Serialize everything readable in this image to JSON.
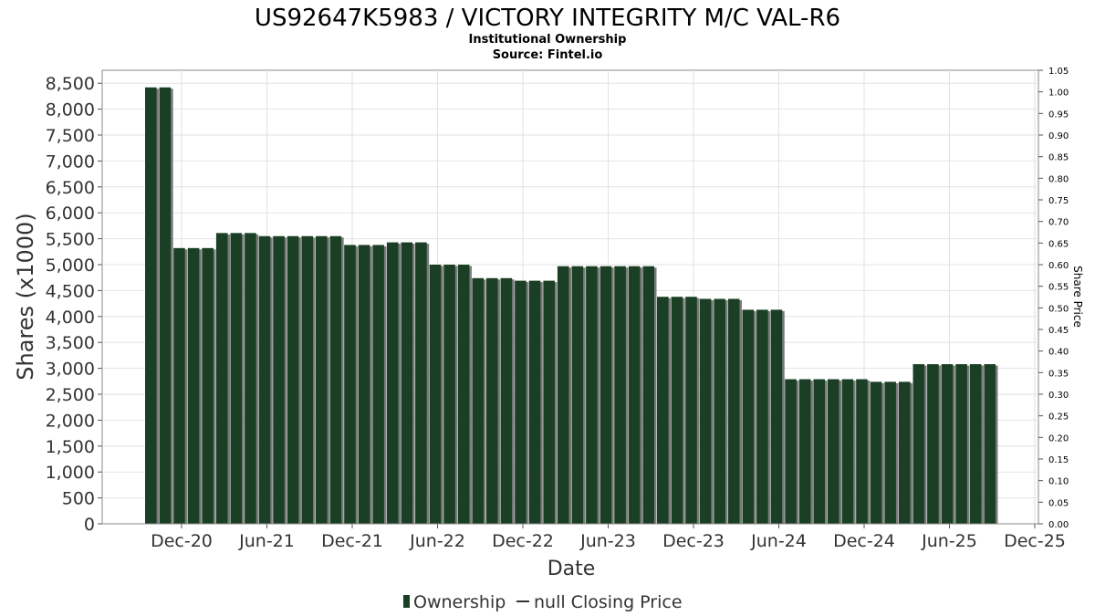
{
  "chart_data": {
    "type": "bar",
    "title": "US92647K5983 / VICTORY INTEGRITY M/C VAL-R6",
    "subtitle_line1": "Institutional Ownership",
    "subtitle_line2": "Source: Fintel.io",
    "xlabel": "Date",
    "ylabel": "Shares (x1000)",
    "y2label": "Share Price",
    "ylim": [
      0,
      8750
    ],
    "y2lim": [
      0,
      1.05
    ],
    "grid": true,
    "legend_position": "bottom-center",
    "yticks": [
      {
        "value": 0,
        "label": "0"
      },
      {
        "value": 500,
        "label": "500"
      },
      {
        "value": 1000,
        "label": "1,000"
      },
      {
        "value": 1500,
        "label": "1,500"
      },
      {
        "value": 2000,
        "label": "2,000"
      },
      {
        "value": 2500,
        "label": "2,500"
      },
      {
        "value": 3000,
        "label": "3,000"
      },
      {
        "value": 3500,
        "label": "3,500"
      },
      {
        "value": 4000,
        "label": "4,000"
      },
      {
        "value": 4500,
        "label": "4,500"
      },
      {
        "value": 5000,
        "label": "5,000"
      },
      {
        "value": 5500,
        "label": "5,500"
      },
      {
        "value": 6000,
        "label": "6,000"
      },
      {
        "value": 6500,
        "label": "6,500"
      },
      {
        "value": 7000,
        "label": "7,000"
      },
      {
        "value": 7500,
        "label": "7,500"
      },
      {
        "value": 8000,
        "label": "8,000"
      },
      {
        "value": 8500,
        "label": "8,500"
      }
    ],
    "y2ticks": [
      "0.00",
      "0.05",
      "0.10",
      "0.15",
      "0.20",
      "0.25",
      "0.30",
      "0.35",
      "0.40",
      "0.45",
      "0.50",
      "0.55",
      "0.60",
      "0.65",
      "0.70",
      "0.75",
      "0.80",
      "0.85",
      "0.90",
      "0.95",
      "1.00",
      "1.05"
    ],
    "xticks": [
      "Dec-20",
      "Jun-21",
      "Dec-21",
      "Jun-22",
      "Dec-22",
      "Jun-23",
      "Dec-23",
      "Jun-24",
      "Dec-24",
      "Jun-25",
      "Dec-25"
    ],
    "series": [
      {
        "name": "Ownership",
        "color": "#1a3f24",
        "shadow_color": "#7a7a7a",
        "values": [
          8420,
          8420,
          5320,
          5320,
          5320,
          5610,
          5610,
          5610,
          5550,
          5550,
          5550,
          5550,
          5550,
          5550,
          5380,
          5380,
          5380,
          5430,
          5430,
          5430,
          5000,
          5000,
          5000,
          4740,
          4740,
          4740,
          4690,
          4690,
          4690,
          4970,
          4970,
          4970,
          4970,
          4970,
          4970,
          4970,
          4380,
          4380,
          4380,
          4340,
          4340,
          4340,
          4130,
          4130,
          4130,
          2790,
          2790,
          2790,
          2790,
          2790,
          2790,
          2740,
          2740,
          2740,
          3080,
          3080,
          3080,
          3080,
          3080,
          3080
        ]
      },
      {
        "name": "null Closing Price",
        "color": "#333333",
        "values": []
      }
    ]
  }
}
